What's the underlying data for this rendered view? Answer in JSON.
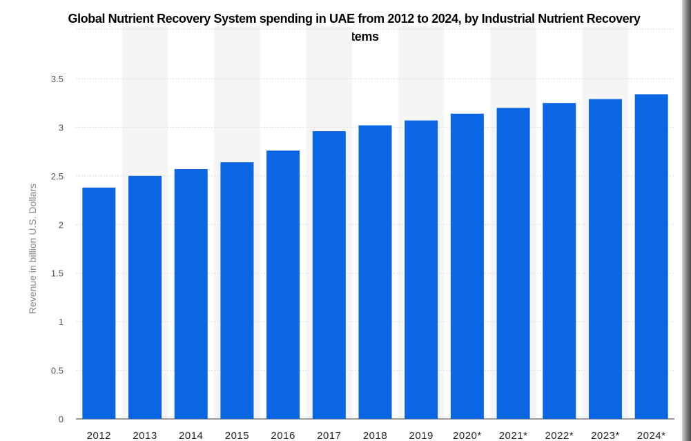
{
  "chart_data": {
    "type": "bar",
    "title": "Global Nutrient Recovery System spending in UAE from 2012 to 2024, by Industrial Nutrient Recovery Systems",
    "xlabel": "",
    "ylabel": "Revenue in billion U.S. Dollars",
    "categories": [
      "2012",
      "2013",
      "2014",
      "2015",
      "2016",
      "2017",
      "2018",
      "2019",
      "2020*",
      "2021*",
      "2022*",
      "2023*",
      "2024*"
    ],
    "values": [
      2.38,
      2.5,
      2.57,
      2.64,
      2.76,
      2.96,
      3.02,
      3.07,
      3.14,
      3.2,
      3.25,
      3.29,
      3.34
    ],
    "ylim": [
      0,
      3.5
    ],
    "yticks": [
      "0",
      "0.5",
      "1",
      "1.5",
      "2",
      "2.5",
      "3",
      "3.5"
    ],
    "grid": true,
    "bar_color": "#0b66e4"
  }
}
